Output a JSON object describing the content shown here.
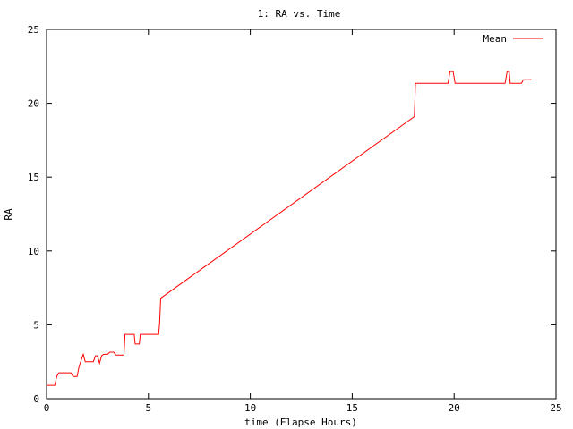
{
  "chart_data": {
    "type": "line",
    "title": "1: RA vs. Time",
    "xlabel": "time (Elapse Hours)",
    "ylabel": "RA",
    "xlim": [
      0,
      25
    ],
    "ylim": [
      0,
      25
    ],
    "xticks": [
      0,
      5,
      10,
      15,
      20,
      25
    ],
    "yticks": [
      0,
      5,
      10,
      15,
      20,
      25
    ],
    "grid": false,
    "legend_position": "top-right",
    "series": [
      {
        "name": "Mean",
        "color": "#ff0000",
        "x": [
          0,
          0.4,
          0.5,
          0.6,
          1.2,
          1.3,
          1.5,
          1.6,
          1.8,
          1.9,
          2.3,
          2.4,
          2.5,
          2.6,
          2.7,
          2.8,
          3.0,
          3.1,
          3.3,
          3.4,
          3.8,
          3.85,
          4.3,
          4.35,
          4.55,
          4.6,
          5.5,
          5.55,
          5.6,
          18.05,
          18.1,
          19.7,
          19.8,
          19.95,
          20.05,
          22.5,
          22.6,
          22.7,
          22.75,
          23.3,
          23.4,
          23.8
        ],
        "values": [
          0.9,
          0.9,
          1.5,
          1.75,
          1.75,
          1.5,
          1.5,
          2.2,
          3.0,
          2.5,
          2.5,
          2.9,
          2.9,
          2.4,
          2.9,
          3.0,
          3.0,
          3.15,
          3.15,
          2.95,
          2.95,
          4.35,
          4.35,
          3.7,
          3.7,
          4.35,
          4.35,
          5.1,
          6.8,
          19.1,
          21.35,
          21.35,
          22.15,
          22.15,
          21.35,
          21.35,
          22.15,
          22.15,
          21.35,
          21.35,
          21.6,
          21.6
        ]
      }
    ]
  }
}
